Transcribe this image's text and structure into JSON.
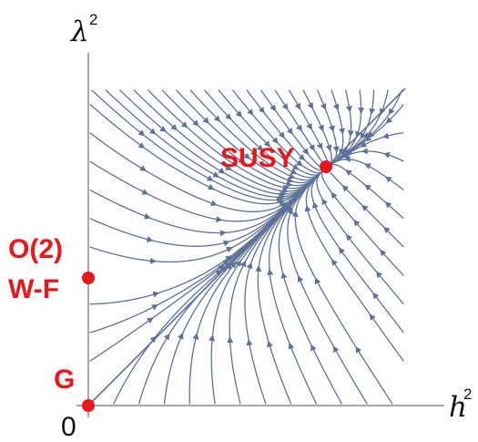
{
  "axes": {
    "x_label": "h",
    "x_label_sup": "2",
    "y_label": "λ",
    "y_label_sup": "2",
    "origin_label": "0"
  },
  "fixed_points": {
    "susy": {
      "label": "SUSY"
    },
    "wf_line1": "O(2)",
    "wf_line2": "W-F",
    "gaussian": {
      "label": "G"
    }
  },
  "colors": {
    "stream": "#5e7196",
    "points": "#e8171c",
    "axis": "#8c8c8c",
    "separatrix": "#5e7196"
  }
}
